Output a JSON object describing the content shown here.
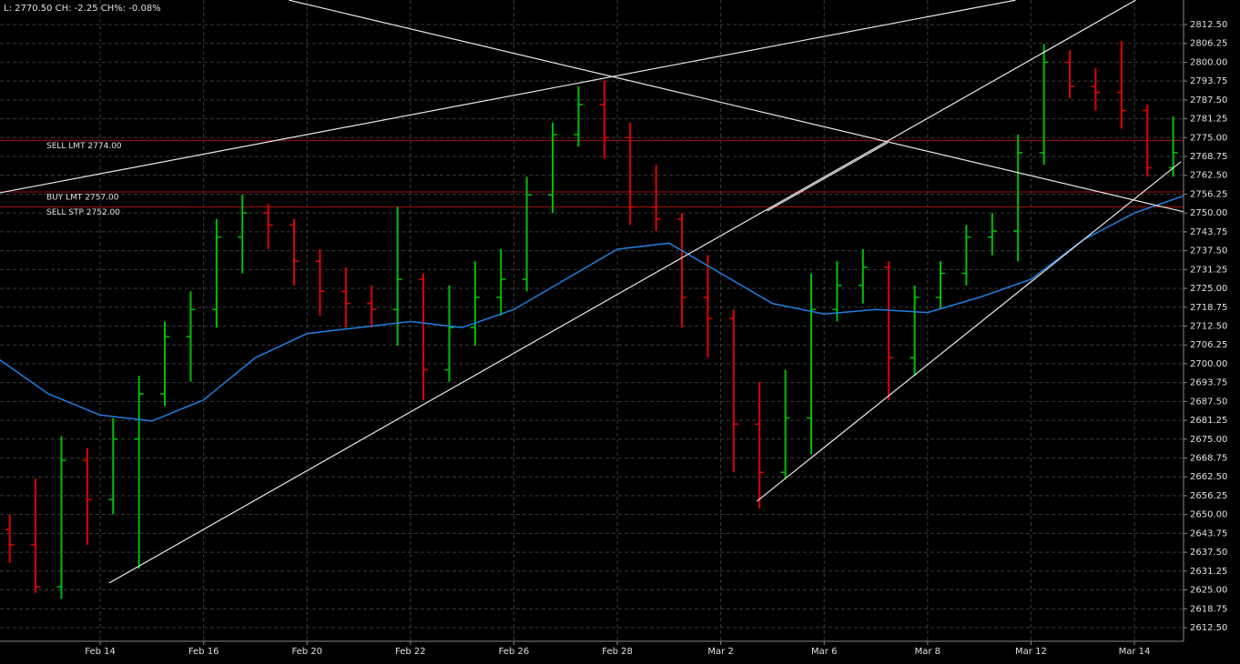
{
  "chart_data": {
    "type": "ohlc",
    "title": "L: 2770.50 CH: -2.25 CH%: -0.08%",
    "x": [
      1,
      3,
      5,
      7,
      9,
      11,
      13,
      15,
      17,
      19,
      21,
      23,
      25,
      27,
      29,
      31,
      33,
      35,
      37,
      39,
      41,
      43,
      45,
      47,
      49,
      51,
      53,
      55,
      57,
      59,
      61,
      63,
      65,
      67,
      69,
      71,
      73,
      75,
      77,
      79,
      81,
      83,
      85,
      87,
      89,
      91
    ],
    "open": [
      2645,
      2640,
      2626,
      2668,
      2655,
      2675,
      2690,
      2709,
      2718,
      2742,
      2750,
      2746,
      2734,
      2724,
      2720,
      2718,
      2728,
      2698,
      2712,
      2722,
      2728,
      2756,
      2776,
      2786,
      2775,
      2752,
      2748,
      2722,
      2715,
      2680,
      2664,
      2682,
      2718,
      2726,
      2732,
      2702,
      2722,
      2730,
      2742,
      2744,
      2770,
      2800,
      2792,
      2790,
      2784,
      2765
    ],
    "high": [
      2650,
      2662,
      2676,
      2672,
      2682,
      2696,
      2714,
      2724,
      2748,
      2756,
      2753,
      2748,
      2738,
      2732,
      2726,
      2752,
      2730,
      2726,
      2734,
      2738,
      2762,
      2780,
      2792,
      2794,
      2780,
      2766,
      2750,
      2736,
      2718,
      2694,
      2698,
      2730,
      2734,
      2738,
      2734,
      2726,
      2734,
      2746,
      2750,
      2776,
      2806,
      2804,
      2798,
      2807,
      2786,
      2782
    ],
    "low": [
      2634,
      2624,
      2622,
      2640,
      2650,
      2632,
      2686,
      2694,
      2712,
      2730,
      2738,
      2726,
      2716,
      2712,
      2712,
      2706,
      2688,
      2694,
      2706,
      2716,
      2724,
      2750,
      2772,
      2768,
      2746,
      2744,
      2712,
      2702,
      2664,
      2652,
      2662,
      2670,
      2714,
      2720,
      2688,
      2696,
      2718,
      2726,
      2736,
      2734,
      2766,
      2788,
      2784,
      2778,
      2762,
      2762
    ],
    "close": [
      2640,
      2626,
      2668,
      2655,
      2675,
      2690,
      2709,
      2718,
      2742,
      2750,
      2746,
      2734,
      2724,
      2720,
      2718,
      2728,
      2698,
      2712,
      2722,
      2728,
      2756,
      2776,
      2786,
      2775,
      2752,
      2748,
      2722,
      2715,
      2680,
      2664,
      2682,
      2718,
      2726,
      2732,
      2702,
      2722,
      2730,
      2742,
      2744,
      2770,
      2800,
      2792,
      2790,
      2784,
      2765,
      2770
    ],
    "up_color": "#00c000",
    "down_color": "#e00000",
    "moving_average": {
      "color": "#1e7fe0",
      "x": [
        0,
        4,
        8,
        12,
        16,
        20,
        24,
        28,
        32,
        36,
        40,
        44,
        48,
        52,
        56,
        60,
        64,
        68,
        72,
        76,
        80,
        84,
        88,
        92
      ],
      "values": [
        2702,
        2690,
        2683,
        2681,
        2688,
        2702,
        2710,
        2712,
        2714,
        2712,
        2718,
        2728,
        2738,
        2740,
        2730,
        2720,
        2716.5,
        2718,
        2717,
        2722,
        2728,
        2741,
        2750,
        2756
      ]
    },
    "trendlines": {
      "color": "#e8e8e8",
      "lines": [
        {
          "x": [
            8.7,
            88.1
          ],
          "y": [
            2627.3,
            2820.6
          ]
        },
        {
          "x": [
            0.25,
            78.8
          ],
          "y": [
            2756.7,
            2820.6
          ]
        },
        {
          "x": [
            22.6,
            91.8
          ],
          "y": [
            2820.6,
            2750.4
          ]
        },
        {
          "x": [
            58.8,
            91.6
          ],
          "y": [
            2654.4,
            2767
          ]
        },
        {
          "x": [
            59.6,
            68.9
          ],
          "y": [
            2750.7,
            2773.3
          ]
        }
      ]
    },
    "orders": [
      {
        "label": "SELL LMT 2774.00",
        "price": 2774,
        "color": "#9a1010"
      },
      {
        "label": "BUY LMT 2757.00",
        "price": 2757,
        "color": "#9a1010"
      },
      {
        "label": "SELL STP 2752.00",
        "price": 2752,
        "color": "#9a1010"
      }
    ],
    "xlim": [
      0.25,
      91.8
    ],
    "xticks": [
      {
        "value": 8,
        "label": "Feb 14"
      },
      {
        "value": 16,
        "label": "Feb 16"
      },
      {
        "value": 24,
        "label": "Feb 20"
      },
      {
        "value": 32,
        "label": "Feb 22"
      },
      {
        "value": 40,
        "label": "Feb 26"
      },
      {
        "value": 48,
        "label": "Feb 28"
      },
      {
        "value": 56,
        "label": "Mar 2"
      },
      {
        "value": 64,
        "label": "Mar 6"
      },
      {
        "value": 72,
        "label": "Mar 8"
      },
      {
        "value": 80,
        "label": "Mar 12"
      },
      {
        "value": 88,
        "label": "Mar 14"
      }
    ],
    "ylim": [
      2607.97,
      2820.64
    ],
    "yticks": [
      {
        "value": 2612.5,
        "label": "2612.50"
      },
      {
        "value": 2618.75,
        "label": "2618.75"
      },
      {
        "value": 2625,
        "label": "2625.00"
      },
      {
        "value": 2631.25,
        "label": "2631.25"
      },
      {
        "value": 2637.5,
        "label": "2637.50"
      },
      {
        "value": 2643.75,
        "label": "2643.75"
      },
      {
        "value": 2650,
        "label": "2650.00"
      },
      {
        "value": 2656.25,
        "label": "2656.25"
      },
      {
        "value": 2662.5,
        "label": "2662.50"
      },
      {
        "value": 2668.75,
        "label": "2668.75"
      },
      {
        "value": 2675,
        "label": "2675.00"
      },
      {
        "value": 2681.25,
        "label": "2681.25"
      },
      {
        "value": 2687.5,
        "label": "2687.50"
      },
      {
        "value": 2693.75,
        "label": "2693.75"
      },
      {
        "value": 2700,
        "label": "2700.00"
      },
      {
        "value": 2706.25,
        "label": "2706.25"
      },
      {
        "value": 2712.5,
        "label": "2712.50"
      },
      {
        "value": 2718.75,
        "label": "2718.75"
      },
      {
        "value": 2725,
        "label": "2725.00"
      },
      {
        "value": 2731.25,
        "label": "2731.25"
      },
      {
        "value": 2737.5,
        "label": "2737.50"
      },
      {
        "value": 2743.75,
        "label": "2743.75"
      },
      {
        "value": 2750,
        "label": "2750.00"
      },
      {
        "value": 2756.25,
        "label": "2756.25"
      },
      {
        "value": 2762.5,
        "label": "2762.50"
      },
      {
        "value": 2768.75,
        "label": "2768.75"
      },
      {
        "value": 2775,
        "label": "2775.00"
      },
      {
        "value": 2781.25,
        "label": "2781.25"
      },
      {
        "value": 2787.5,
        "label": "2787.50"
      },
      {
        "value": 2793.75,
        "label": "2793.75"
      },
      {
        "value": 2800,
        "label": "2800.00"
      },
      {
        "value": 2806.25,
        "label": "2806.25"
      },
      {
        "value": 2812.5,
        "label": "2812.50"
      }
    ],
    "grid": true
  }
}
